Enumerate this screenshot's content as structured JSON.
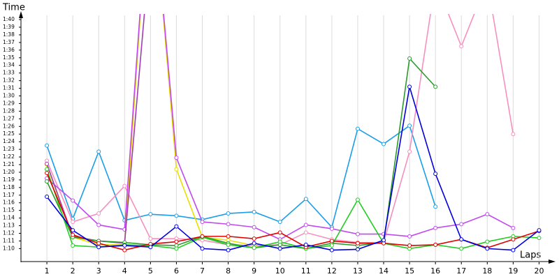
{
  "chart_data": {
    "type": "line",
    "y_label": "Time",
    "x_label": "Laps",
    "x": [
      1,
      2,
      3,
      4,
      5,
      6,
      7,
      8,
      9,
      10,
      11,
      12,
      13,
      14,
      15,
      16,
      17,
      18,
      19,
      20
    ],
    "xlim": [
      0,
      20.5
    ],
    "xticks": [
      1,
      2,
      3,
      4,
      5,
      6,
      7,
      8,
      9,
      10,
      11,
      12,
      13,
      14,
      15,
      16,
      17,
      18,
      19,
      20
    ],
    "ylim": [
      68.3,
      100.7
    ],
    "yticks": [
      {
        "value": 70,
        "label": "1:10"
      },
      {
        "value": 71,
        "label": "1:11"
      },
      {
        "value": 72,
        "label": "1:12"
      },
      {
        "value": 73,
        "label": "1:13"
      },
      {
        "value": 74,
        "label": "1:14"
      },
      {
        "value": 75,
        "label": "1:15"
      },
      {
        "value": 76,
        "label": "1:16"
      },
      {
        "value": 77,
        "label": "1:17"
      },
      {
        "value": 78,
        "label": "1:18"
      },
      {
        "value": 79,
        "label": "1:19"
      },
      {
        "value": 80,
        "label": "1:20"
      },
      {
        "value": 81,
        "label": "1:21"
      },
      {
        "value": 82,
        "label": "1:22"
      },
      {
        "value": 83,
        "label": "1:23"
      },
      {
        "value": 84,
        "label": "1:24"
      },
      {
        "value": 85,
        "label": "1:25"
      },
      {
        "value": 86,
        "label": "1:26"
      },
      {
        "value": 87,
        "label": "1:27"
      },
      {
        "value": 88,
        "label": "1:28"
      },
      {
        "value": 89,
        "label": "1:29"
      },
      {
        "value": 90,
        "label": "1:30"
      },
      {
        "value": 91,
        "label": "1:31"
      },
      {
        "value": 92,
        "label": "1:32"
      },
      {
        "value": 93,
        "label": "1:33"
      },
      {
        "value": 94,
        "label": "1:34"
      },
      {
        "value": 95,
        "label": "1:35"
      },
      {
        "value": 96,
        "label": "1:36"
      },
      {
        "value": 97,
        "label": "1:37"
      },
      {
        "value": 98,
        "label": "1:38"
      },
      {
        "value": 99,
        "label": "1:39"
      },
      {
        "value": 100,
        "label": "1:40"
      }
    ],
    "grid": "x",
    "series": [
      {
        "color": "#1a9ee8",
        "values": [
          83.5,
          73.9,
          82.7,
          73.7,
          74.5,
          74.3,
          73.8,
          74.6,
          74.8,
          73.5,
          76.5,
          72.8,
          85.7,
          83.7,
          86.1,
          75.5,
          null,
          null,
          null,
          null
        ]
      },
      {
        "color": "#f78fbf",
        "values": [
          81.5,
          73.5,
          74.6,
          78.2,
          71.3,
          71.3,
          71.1,
          70.5,
          70.4,
          70.5,
          72.1,
          71.2,
          70.8,
          70.8,
          82.7,
          105,
          96.5,
          105,
          85.0,
          null
        ]
      },
      {
        "color": "#e8e000",
        "values": [
          81.0,
          71.5,
          70.5,
          70.5,
          120,
          80.4,
          71.5,
          71.1,
          70.4,
          null,
          null,
          null,
          null,
          null,
          null,
          null,
          null,
          null,
          null,
          null
        ]
      },
      {
        "color": "#c248f0",
        "values": [
          79.2,
          76.3,
          73.1,
          72.5,
          120,
          81.9,
          73.5,
          73.2,
          72.8,
          71.2,
          73.1,
          72.6,
          71.9,
          71.9,
          71.6,
          72.7,
          73.2,
          74.5,
          72.7,
          null
        ]
      },
      {
        "color": "#a03cb0",
        "values": [
          81.1,
          71.6,
          71.0,
          70.7,
          110,
          null,
          null,
          null,
          null,
          null,
          null,
          null,
          null,
          null,
          null,
          null,
          null,
          null,
          null,
          null
        ]
      },
      {
        "color": "#2a9a2a",
        "values": [
          78.8,
          71.5,
          71.0,
          70.8,
          70.5,
          70.4,
          71.6,
          70.7,
          70.1,
          70.5,
          70.0,
          70.7,
          70.4,
          70.8,
          94.9,
          91.2,
          null,
          null,
          null,
          null
        ]
      },
      {
        "color": "#22cc22",
        "values": [
          80.4,
          70.4,
          70.2,
          70.5,
          70.4,
          70.0,
          71.5,
          70.5,
          70.1,
          70.9,
          70.0,
          70.4,
          76.4,
          70.7,
          70.0,
          70.5,
          70.0,
          70.9,
          71.6,
          71.4
        ]
      },
      {
        "color": "#e00000",
        "values": [
          79.9,
          71.8,
          70.7,
          69.8,
          70.6,
          70.9,
          71.6,
          71.6,
          71.3,
          72.1,
          70.2,
          71.0,
          70.7,
          70.7,
          70.4,
          70.5,
          71.2,
          70.1,
          71.2,
          72.3
        ]
      },
      {
        "color": "#0000dd",
        "values": [
          76.8,
          72.4,
          70.2,
          70.4,
          70.2,
          72.9,
          70.0,
          69.8,
          70.7,
          70.0,
          70.5,
          69.8,
          69.9,
          71.1,
          91.2,
          79.8,
          71.2,
          70.0,
          69.8,
          72.4
        ]
      }
    ]
  }
}
